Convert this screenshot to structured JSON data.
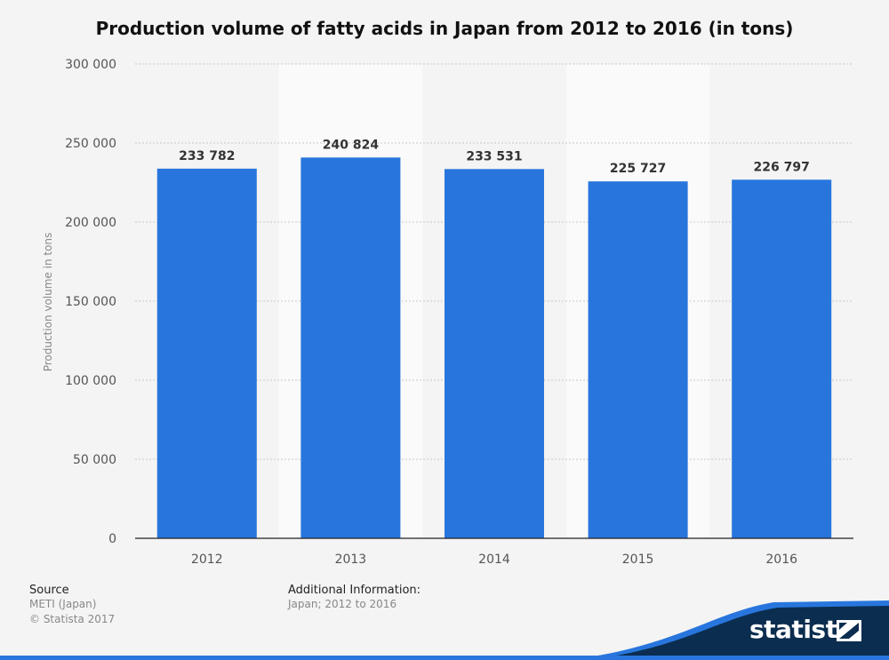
{
  "title": "Production volume of fatty acids in Japan from 2012 to 2016 (in tons)",
  "chart_data": {
    "type": "bar",
    "title": "Production volume of fatty acids in Japan from 2012 to 2016 (in tons)",
    "categories": [
      "2012",
      "2013",
      "2014",
      "2015",
      "2016"
    ],
    "values": [
      233782,
      240824,
      233531,
      225727,
      226797
    ],
    "value_labels": [
      "233 782",
      "240 824",
      "233 531",
      "225 727",
      "226 797"
    ],
    "xlabel": "",
    "ylabel": "Production volume in tons",
    "ylim": [
      0,
      300000
    ],
    "y_ticks": [
      0,
      50000,
      100000,
      150000,
      200000,
      250000,
      300000
    ],
    "y_tick_labels": [
      "0",
      "50 000",
      "100 000",
      "150 000",
      "200 000",
      "250 000",
      "300 000"
    ],
    "grid": true,
    "bar_color": "#2876dd"
  },
  "footer": {
    "source_heading": "Source",
    "source_lines": [
      "METI (Japan)",
      "© Statista 2017"
    ],
    "info_heading": "Additional Information:",
    "info_text": "Japan; 2012 to 2016"
  },
  "brand": {
    "name": "statista",
    "color": "#0b2d4f",
    "accent": "#2876dd"
  }
}
